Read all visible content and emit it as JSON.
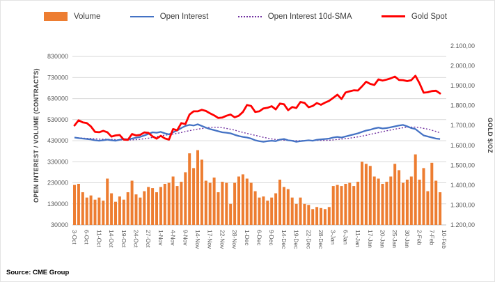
{
  "legend": {
    "items": [
      {
        "label": "Volume",
        "type": "bar"
      },
      {
        "label": "Open Interest",
        "type": "line"
      },
      {
        "label": "Open Interest 10d-SMA",
        "type": "dotted-line"
      },
      {
        "label": "Gold Spot",
        "type": "thick-line"
      }
    ]
  },
  "source": "Source: CME Group",
  "chart_data": {
    "type": "combo-bar-line",
    "grid": true,
    "legend_position": "top",
    "dates": [
      "3-Oct",
      "4-Oct",
      "5-Oct",
      "6-Oct",
      "7-Oct",
      "10-Oct",
      "11-Oct",
      "12-Oct",
      "13-Oct",
      "14-Oct",
      "17-Oct",
      "18-Oct",
      "19-Oct",
      "20-Oct",
      "21-Oct",
      "24-Oct",
      "25-Oct",
      "26-Oct",
      "27-Oct",
      "28-Oct",
      "31-Oct",
      "1-Nov",
      "2-Nov",
      "3-Nov",
      "4-Nov",
      "7-Nov",
      "8-Nov",
      "9-Nov",
      "10-Nov",
      "11-Nov",
      "14-Nov",
      "15-Nov",
      "16-Nov",
      "17-Nov",
      "18-Nov",
      "21-Nov",
      "22-Nov",
      "23-Nov",
      "25-Nov",
      "28-Nov",
      "29-Nov",
      "30-Nov",
      "1-Dec",
      "2-Dec",
      "5-Dec",
      "6-Dec",
      "7-Dec",
      "8-Dec",
      "9-Dec",
      "12-Dec",
      "13-Dec",
      "14-Dec",
      "15-Dec",
      "16-Dec",
      "19-Dec",
      "20-Dec",
      "21-Dec",
      "22-Dec",
      "23-Dec",
      "27-Dec",
      "28-Dec",
      "29-Dec",
      "30-Dec",
      "3-Jan",
      "4-Jan",
      "5-Jan",
      "6-Jan",
      "9-Jan",
      "10-Jan",
      "11-Jan",
      "12-Jan",
      "13-Jan",
      "17-Jan",
      "18-Jan",
      "19-Jan",
      "20-Jan",
      "23-Jan",
      "24-Jan",
      "25-Jan",
      "26-Jan",
      "27-Jan",
      "30-Jan",
      "31-Jan",
      "1-Feb",
      "2-Feb",
      "3-Feb",
      "6-Feb",
      "7-Feb",
      "8-Feb",
      "9-Feb",
      "10-Feb"
    ],
    "x_tick_every": 3,
    "series": {
      "volume": [
        220000,
        225000,
        185000,
        160000,
        170000,
        150000,
        160000,
        145000,
        250000,
        180000,
        140000,
        165000,
        150000,
        185000,
        240000,
        175000,
        160000,
        190000,
        210000,
        205000,
        185000,
        210000,
        225000,
        230000,
        260000,
        215000,
        235000,
        280000,
        370000,
        300000,
        385000,
        340000,
        240000,
        230000,
        255000,
        185000,
        235000,
        230000,
        130000,
        230000,
        260000,
        270000,
        250000,
        230000,
        190000,
        160000,
        165000,
        145000,
        160000,
        180000,
        245000,
        210000,
        200000,
        160000,
        130000,
        160000,
        130000,
        125000,
        105000,
        115000,
        110000,
        105000,
        115000,
        215000,
        220000,
        215000,
        225000,
        230000,
        215000,
        235000,
        330000,
        320000,
        310000,
        260000,
        250000,
        225000,
        235000,
        260000,
        320000,
        290000,
        230000,
        245000,
        260000,
        365000,
        245000,
        300000,
        190000,
        325000,
        240000,
        185000,
        null
      ],
      "open_interest": [
        445000,
        442000,
        440000,
        438000,
        436000,
        432000,
        430000,
        432000,
        435000,
        432000,
        430000,
        434000,
        438000,
        436000,
        440000,
        444000,
        448000,
        455000,
        462000,
        470000,
        468000,
        472000,
        465000,
        460000,
        470000,
        478000,
        490000,
        500000,
        505000,
        502000,
        508000,
        500000,
        492000,
        485000,
        480000,
        475000,
        470000,
        468000,
        465000,
        458000,
        452000,
        448000,
        445000,
        440000,
        432000,
        428000,
        425000,
        428000,
        430000,
        428000,
        435000,
        438000,
        432000,
        430000,
        425000,
        428000,
        430000,
        432000,
        430000,
        434000,
        436000,
        438000,
        440000,
        445000,
        448000,
        445000,
        450000,
        455000,
        460000,
        465000,
        472000,
        478000,
        482000,
        488000,
        492000,
        488000,
        490000,
        494000,
        498000,
        502000,
        505000,
        498000,
        490000,
        485000,
        470000,
        455000,
        450000,
        445000,
        440000,
        438000,
        null
      ],
      "gold_spot": [
        1700,
        1726,
        1716,
        1712,
        1695,
        1668,
        1666,
        1673,
        1666,
        1644,
        1650,
        1652,
        1629,
        1628,
        1657,
        1650,
        1653,
        1665,
        1663,
        1645,
        1634,
        1648,
        1635,
        1629,
        1682,
        1676,
        1712,
        1707,
        1755,
        1771,
        1771,
        1779,
        1773,
        1761,
        1751,
        1738,
        1740,
        1749,
        1755,
        1741,
        1749,
        1768,
        1803,
        1798,
        1768,
        1771,
        1786,
        1789,
        1797,
        1781,
        1810,
        1807,
        1777,
        1793,
        1788,
        1818,
        1814,
        1792,
        1798,
        1813,
        1804,
        1815,
        1824,
        1839,
        1855,
        1833,
        1866,
        1872,
        1877,
        1876,
        1897,
        1920,
        1909,
        1904,
        1932,
        1926,
        1931,
        1937,
        1946,
        1929,
        1928,
        1923,
        1928,
        1950,
        1912,
        1865,
        1867,
        1873,
        1875,
        1861,
        null
      ]
    },
    "sma_window": 10,
    "left_axis": {
      "title": "OPEN INTEREST / VOLUME (CONTRACTS)",
      "ticks": [
        30000,
        130000,
        230000,
        330000,
        430000,
        530000,
        630000,
        730000,
        830000
      ],
      "scale_min": 30000,
      "scale_max": 880000
    },
    "right_axis": {
      "title": "GOLD $/OZ",
      "min": 1200,
      "max": 2100,
      "ticks": [
        1200,
        1300,
        1400,
        1500,
        1600,
        1700,
        1800,
        1900,
        2000,
        2100
      ],
      "labels": [
        "1.200,00",
        "1.300,00",
        "1.400,00",
        "1.500,00",
        "1.600,00",
        "1.700,00",
        "1.800,00",
        "1.900,00",
        "2.000,00",
        "2.100,00"
      ]
    },
    "colors": {
      "volume": "#ED7D31",
      "open_interest": "#4472C4",
      "sma": "#7030A0",
      "gold": "#FF0000",
      "grid": "#D9D9D9",
      "axis": "#BFBFBF",
      "text": "#595959"
    }
  }
}
